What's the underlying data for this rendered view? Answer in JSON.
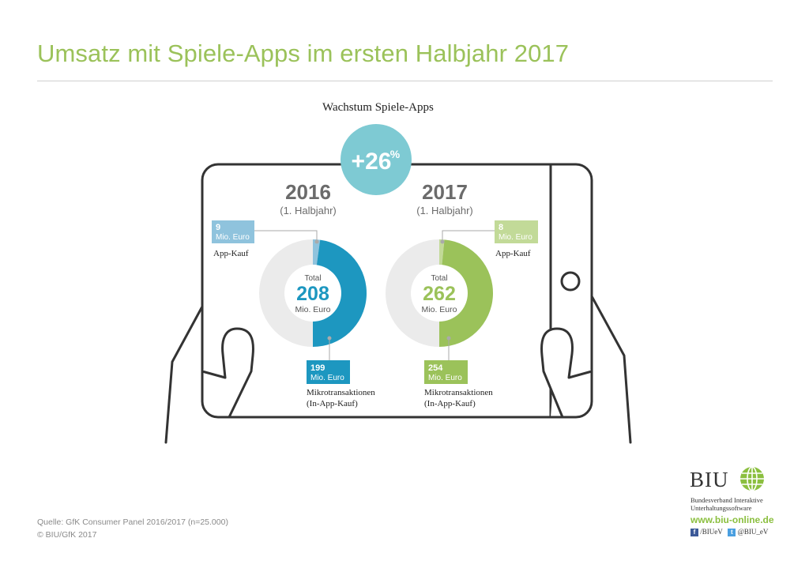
{
  "title": "Umsatz mit Spiele-Apps im ersten Halbjahr 2017",
  "growth": {
    "label": "Wachstum Spiele-Apps",
    "value": "+26",
    "unit": "%"
  },
  "colors": {
    "title": "#9bc25a",
    "growth_bubble": "#7ecad3",
    "blue_dark": "#1d97c0",
    "blue_light": "#8fc3dd",
    "green_dark": "#9bc25a",
    "green_light": "#c2da98",
    "donut_bg": "#ebebeb",
    "device_line": "#333333"
  },
  "chart_data": [
    {
      "type": "pie",
      "year": "2016",
      "period": "(1. Halbjahr)",
      "total_label": "Total",
      "total": 208,
      "total_unit": "Mio. Euro",
      "slices": [
        {
          "value": 9,
          "unit": "Mio. Euro",
          "label": "App-Kauf"
        },
        {
          "value": 199,
          "unit": "Mio. Euro",
          "label_line1": "Mikrotransaktionen",
          "label_line2": "(In-App-Kauf)"
        }
      ]
    },
    {
      "type": "pie",
      "year": "2017",
      "period": "(1. Halbjahr)",
      "total_label": "Total",
      "total": 262,
      "total_unit": "Mio. Euro",
      "slices": [
        {
          "value": 8,
          "unit": "Mio. Euro",
          "label": "App-Kauf"
        },
        {
          "value": 254,
          "unit": "Mio. Euro",
          "label_line1": "Mikrotransaktionen",
          "label_line2": "(In-App-Kauf)"
        }
      ]
    }
  ],
  "source": {
    "line1": "Quelle: GfK Consumer Panel 2016/2017 (n=25.000)",
    "line2": "© BIU/GfK 2017"
  },
  "logo": {
    "word": "BIU",
    "sub1": "Bundesverband Interaktive",
    "sub2": "Unterhaltungssoftware",
    "url": "www.biu-online.de",
    "facebook": "/BIUeV",
    "twitter": "@BIU_eV"
  }
}
